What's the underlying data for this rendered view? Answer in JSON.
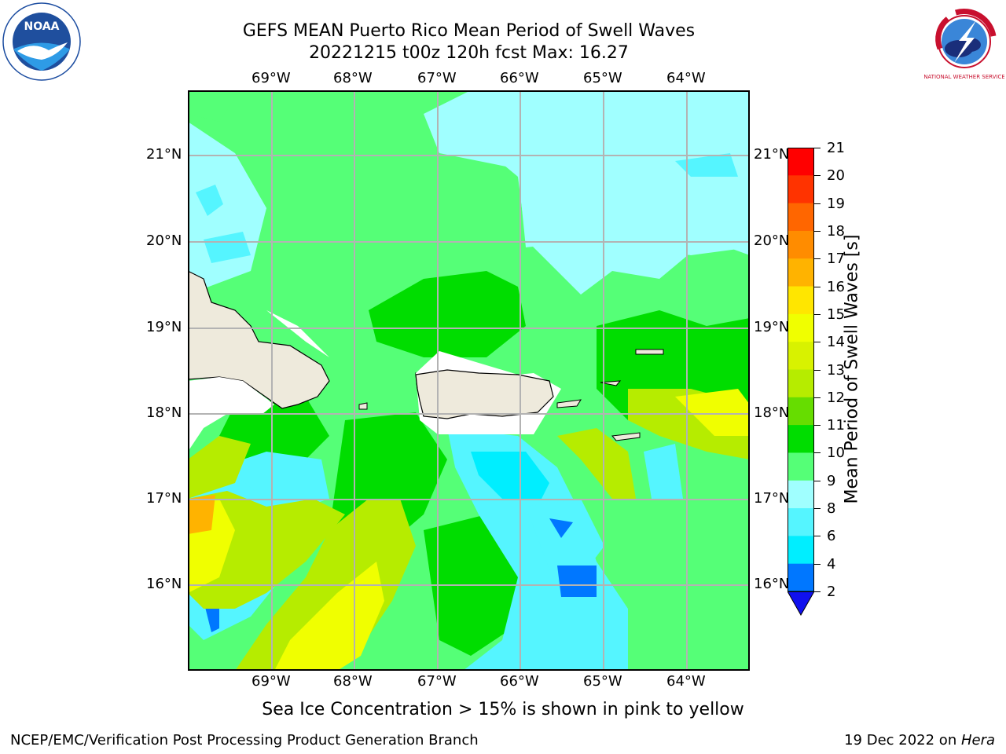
{
  "header": {
    "title_line1": "GEFS MEAN Puerto Rico Mean Period of Swell Waves",
    "title_line2": "20221215 t00z 120h fcst   Max: 16.27"
  },
  "logos": {
    "left": {
      "name": "noaa-logo",
      "text": "NOAA"
    },
    "right": {
      "name": "nws-logo",
      "text": "NATIONAL WEATHER SERVICE"
    }
  },
  "map": {
    "lon_labels": [
      "69°W",
      "68°W",
      "67°W",
      "66°W",
      "65°W",
      "64°W"
    ],
    "lat_labels": [
      "21°N",
      "20°N",
      "19°N",
      "18°N",
      "17°N",
      "16°N"
    ],
    "land_color": "#eeeadc",
    "grid_color": "#b3b3b3"
  },
  "colorbar": {
    "label": "Mean Period of Swell Waves [s]",
    "ticks": [
      "21",
      "20",
      "19",
      "18",
      "17",
      "16",
      "15",
      "14",
      "13",
      "12",
      "11",
      "10",
      "9",
      "8",
      "6",
      "4",
      "2"
    ],
    "colors": [
      "#ff0000",
      "#ff3300",
      "#ff6600",
      "#ff8c00",
      "#ffb300",
      "#ffe600",
      "#f0ff00",
      "#d8f200",
      "#b6ec00",
      "#66dd00",
      "#00dd00",
      "#55ff77",
      "#a0ffff",
      "#55f5ff",
      "#00eeff",
      "#0077ff",
      "#1010ee"
    ]
  },
  "footer": {
    "note": "Sea Ice Concentration > 15% is shown in pink to yellow",
    "left": "NCEP/EMC/Verification Post Processing Product Generation Branch",
    "date": "19 Dec 2022 on ",
    "machine": "Hera"
  }
}
